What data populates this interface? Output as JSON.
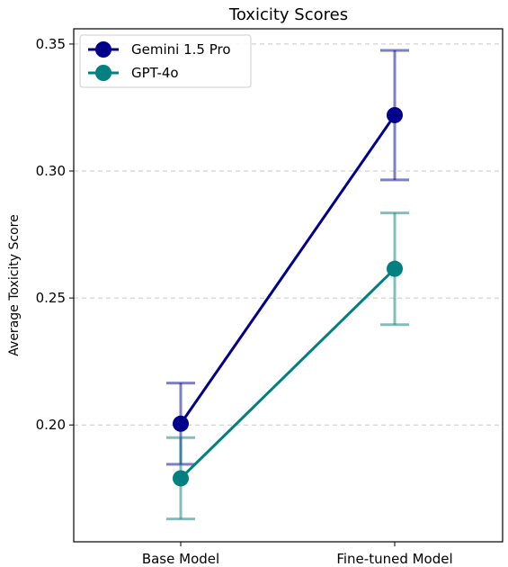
{
  "chart_data": {
    "type": "line",
    "title": "Toxicity Scores",
    "xlabel": "",
    "ylabel": "Average Toxicity Score",
    "categories": [
      "Base Model",
      "Fine-tuned Model"
    ],
    "ylim": [
      0.154,
      0.356
    ],
    "yticks": [
      "0.20",
      "0.25",
      "0.30",
      "0.35"
    ],
    "grid": "horizontal dashed",
    "legend_position": "top-left",
    "series": [
      {
        "name": "Gemini 1.5 Pro",
        "color": "#00008b",
        "values": [
          0.2005,
          0.322
        ],
        "error_low": [
          0.1845,
          0.2965
        ],
        "error_high": [
          0.2165,
          0.3475
        ]
      },
      {
        "name": "GPT-4o",
        "color": "#008080",
        "values": [
          0.179,
          0.2615
        ],
        "error_low": [
          0.163,
          0.2395
        ],
        "error_high": [
          0.195,
          0.2835
        ]
      }
    ]
  }
}
